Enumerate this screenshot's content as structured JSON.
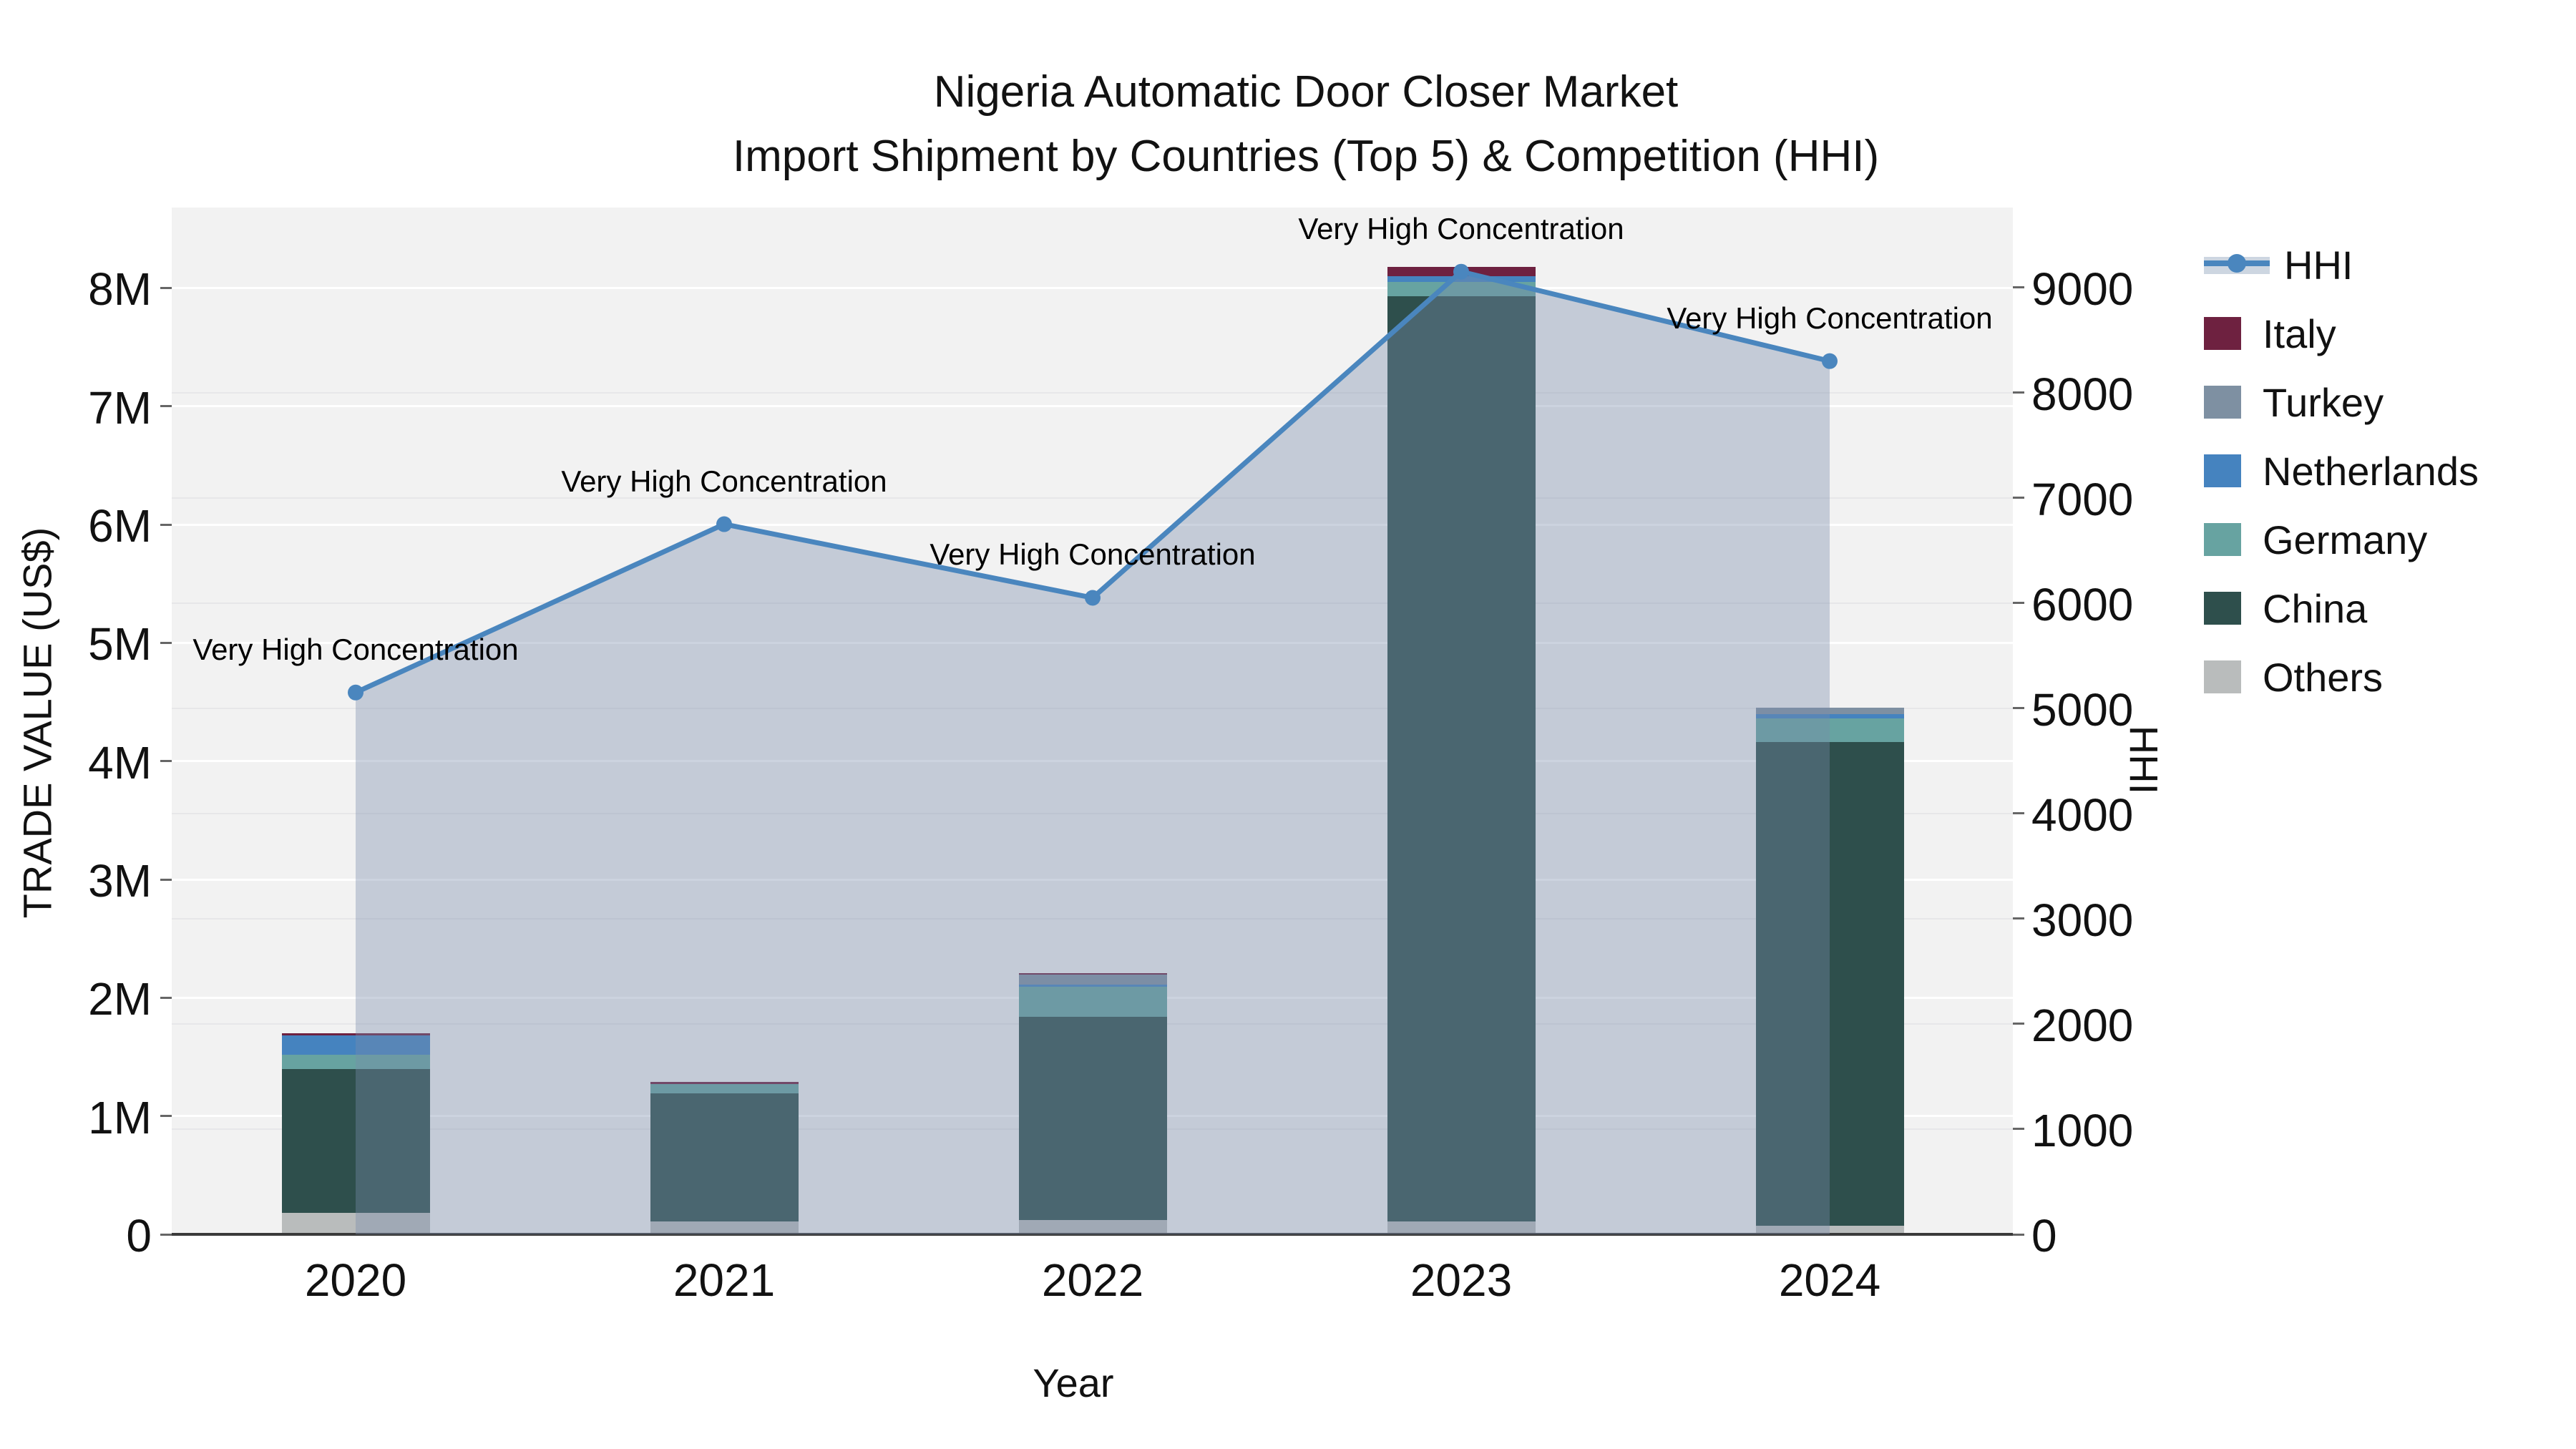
{
  "title": {
    "line1": "Nigeria Automatic Door Closer Market",
    "line2": "Import Shipment by Countries (Top 5) & Competition (HHI)"
  },
  "chart_data": {
    "type": "combo-stacked-bar-line",
    "categories": [
      "2020",
      "2021",
      "2022",
      "2023",
      "2024"
    ],
    "xlabel": "Year",
    "ylabel": "TRADE VALUE (US$)",
    "y2label": "HHI",
    "y_axis": {
      "unit": "millions of US$",
      "max": 8.68,
      "ticks": [
        {
          "v": 0,
          "label": "0"
        },
        {
          "v": 1,
          "label": "1M"
        },
        {
          "v": 2,
          "label": "2M"
        },
        {
          "v": 3,
          "label": "3M"
        },
        {
          "v": 4,
          "label": "4M"
        },
        {
          "v": 5,
          "label": "5M"
        },
        {
          "v": 6,
          "label": "6M"
        },
        {
          "v": 7,
          "label": "7M"
        },
        {
          "v": 8,
          "label": "8M"
        }
      ]
    },
    "y2_axis": {
      "unit": "HHI index",
      "max": 9760,
      "ticks": [
        {
          "v": 0,
          "label": "0"
        },
        {
          "v": 1000,
          "label": "1000"
        },
        {
          "v": 2000,
          "label": "2000"
        },
        {
          "v": 3000,
          "label": "3000"
        },
        {
          "v": 4000,
          "label": "4000"
        },
        {
          "v": 5000,
          "label": "5000"
        },
        {
          "v": 6000,
          "label": "6000"
        },
        {
          "v": 7000,
          "label": "7000"
        },
        {
          "v": 8000,
          "label": "8000"
        },
        {
          "v": 9000,
          "label": "9000"
        }
      ]
    },
    "bar_series": [
      {
        "name": "Others",
        "color": "#b9bcbc",
        "values_musd": [
          0.18,
          0.11,
          0.12,
          0.11,
          0.07
        ]
      },
      {
        "name": "China",
        "color": "#2e4f4c",
        "values_musd": [
          1.22,
          1.08,
          1.72,
          7.82,
          4.09
        ]
      },
      {
        "name": "Germany",
        "color": "#67a3a1",
        "values_musd": [
          0.12,
          0.08,
          0.25,
          0.12,
          0.2
        ]
      },
      {
        "name": "Netherlands",
        "color": "#4583bf",
        "values_musd": [
          0.16,
          0.0,
          0.02,
          0.05,
          0.04
        ]
      },
      {
        "name": "Turkey",
        "color": "#7e90a2",
        "values_musd": [
          0.0,
          0.0,
          0.09,
          0.0,
          0.05
        ]
      },
      {
        "name": "Italy",
        "color": "#6e2140",
        "values_musd": [
          0.02,
          0.02,
          0.01,
          0.08,
          0.0
        ]
      }
    ],
    "line_series": {
      "name": "HHI",
      "color": "#4a86be",
      "area_fill": "rgba(120,140,170,0.38)",
      "values": [
        5150,
        6750,
        6050,
        9150,
        8300
      ]
    },
    "annotations": [
      {
        "x": "2020",
        "text": "Very High Concentration"
      },
      {
        "x": "2021",
        "text": "Very High Concentration"
      },
      {
        "x": "2022",
        "text": "Very High Concentration"
      },
      {
        "x": "2023",
        "text": "Very High Concentration"
      },
      {
        "x": "2024",
        "text": "Very High Concentration"
      }
    ],
    "legend": {
      "items": [
        {
          "label": "HHI",
          "type": "line",
          "color": "#4a86be"
        },
        {
          "label": "Italy",
          "type": "swatch",
          "color": "#6e2140"
        },
        {
          "label": "Turkey",
          "type": "swatch",
          "color": "#7e90a2"
        },
        {
          "label": "Netherlands",
          "type": "swatch",
          "color": "#4583bf"
        },
        {
          "label": "Germany",
          "type": "swatch",
          "color": "#67a3a1"
        },
        {
          "label": "China",
          "type": "swatch",
          "color": "#2e4f4c"
        },
        {
          "label": "Others",
          "type": "swatch",
          "color": "#b9bcbc"
        }
      ]
    }
  }
}
